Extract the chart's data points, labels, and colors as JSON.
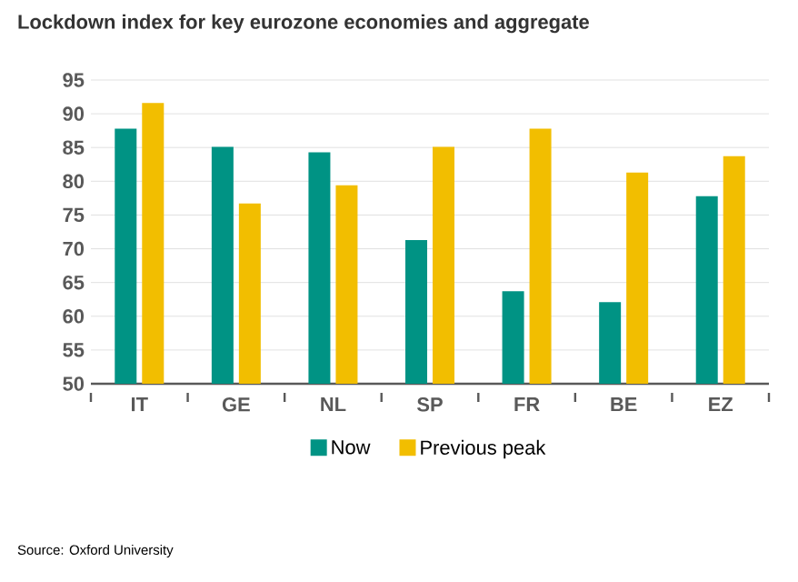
{
  "chart_data": {
    "type": "bar",
    "title": "Lockdown index for key eurozone economies and aggregate",
    "categories": [
      "IT",
      "GE",
      "NL",
      "SP",
      "FR",
      "BE",
      "EZ"
    ],
    "series": [
      {
        "name": "Now",
        "color": "#009384",
        "values": [
          87.8,
          85.1,
          84.3,
          71.3,
          63.7,
          62.1,
          77.8
        ]
      },
      {
        "name": "Previous peak",
        "color": "#f2be00",
        "values": [
          91.6,
          76.7,
          79.4,
          85.1,
          87.8,
          81.3,
          83.7
        ]
      }
    ],
    "ylim": [
      50,
      95
    ],
    "yticks": [
      50,
      55,
      60,
      65,
      70,
      75,
      80,
      85,
      90,
      95
    ],
    "grid": "y",
    "legend": "bottom",
    "annotations": [
      "Source: Oxford University"
    ]
  }
}
